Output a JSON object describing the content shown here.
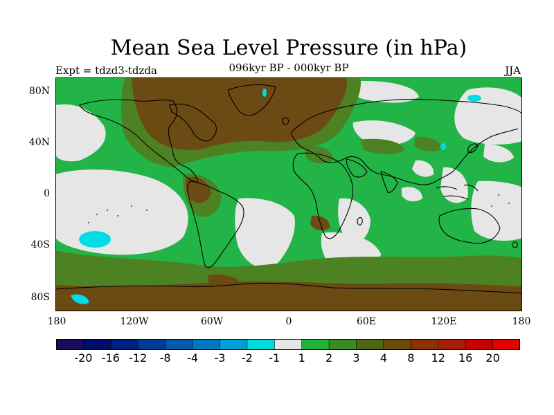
{
  "title": "Mean Sea Level Pressure (in hPa)",
  "experiment": "Expt = tdzd3-tdzda",
  "subtitle": "096kyr BP - 000kyr BP",
  "season": "JJA",
  "lat_ticks": [
    "80N",
    "40N",
    "0",
    "40S",
    "80S"
  ],
  "lon_ticks": [
    "180",
    "120W",
    "60W",
    "0",
    "60E",
    "120E",
    "180"
  ],
  "colorbar": {
    "levels": [
      "-20",
      "-16",
      "-12",
      "-8",
      "-4",
      "-3",
      "-2",
      "-1",
      "1",
      "2",
      "3",
      "4",
      "8",
      "12",
      "16",
      "20"
    ],
    "colors": [
      "#1c0a5c",
      "#000e6b",
      "#002080",
      "#003a96",
      "#005aaa",
      "#0078c0",
      "#00a0d4",
      "#00dcdc",
      "#e6e6e6",
      "#1eb43c",
      "#3a8c22",
      "#4d6614",
      "#6b4a0a",
      "#8c3008",
      "#a81c0a",
      "#cc0000",
      "#e60000"
    ]
  },
  "colors": {
    "land_line": "#000000",
    "neutral": "#e6e6e6",
    "green": "#22b447",
    "olive": "#4c8222",
    "brown": "#6b4a14",
    "cyan": "#00dce6"
  }
}
